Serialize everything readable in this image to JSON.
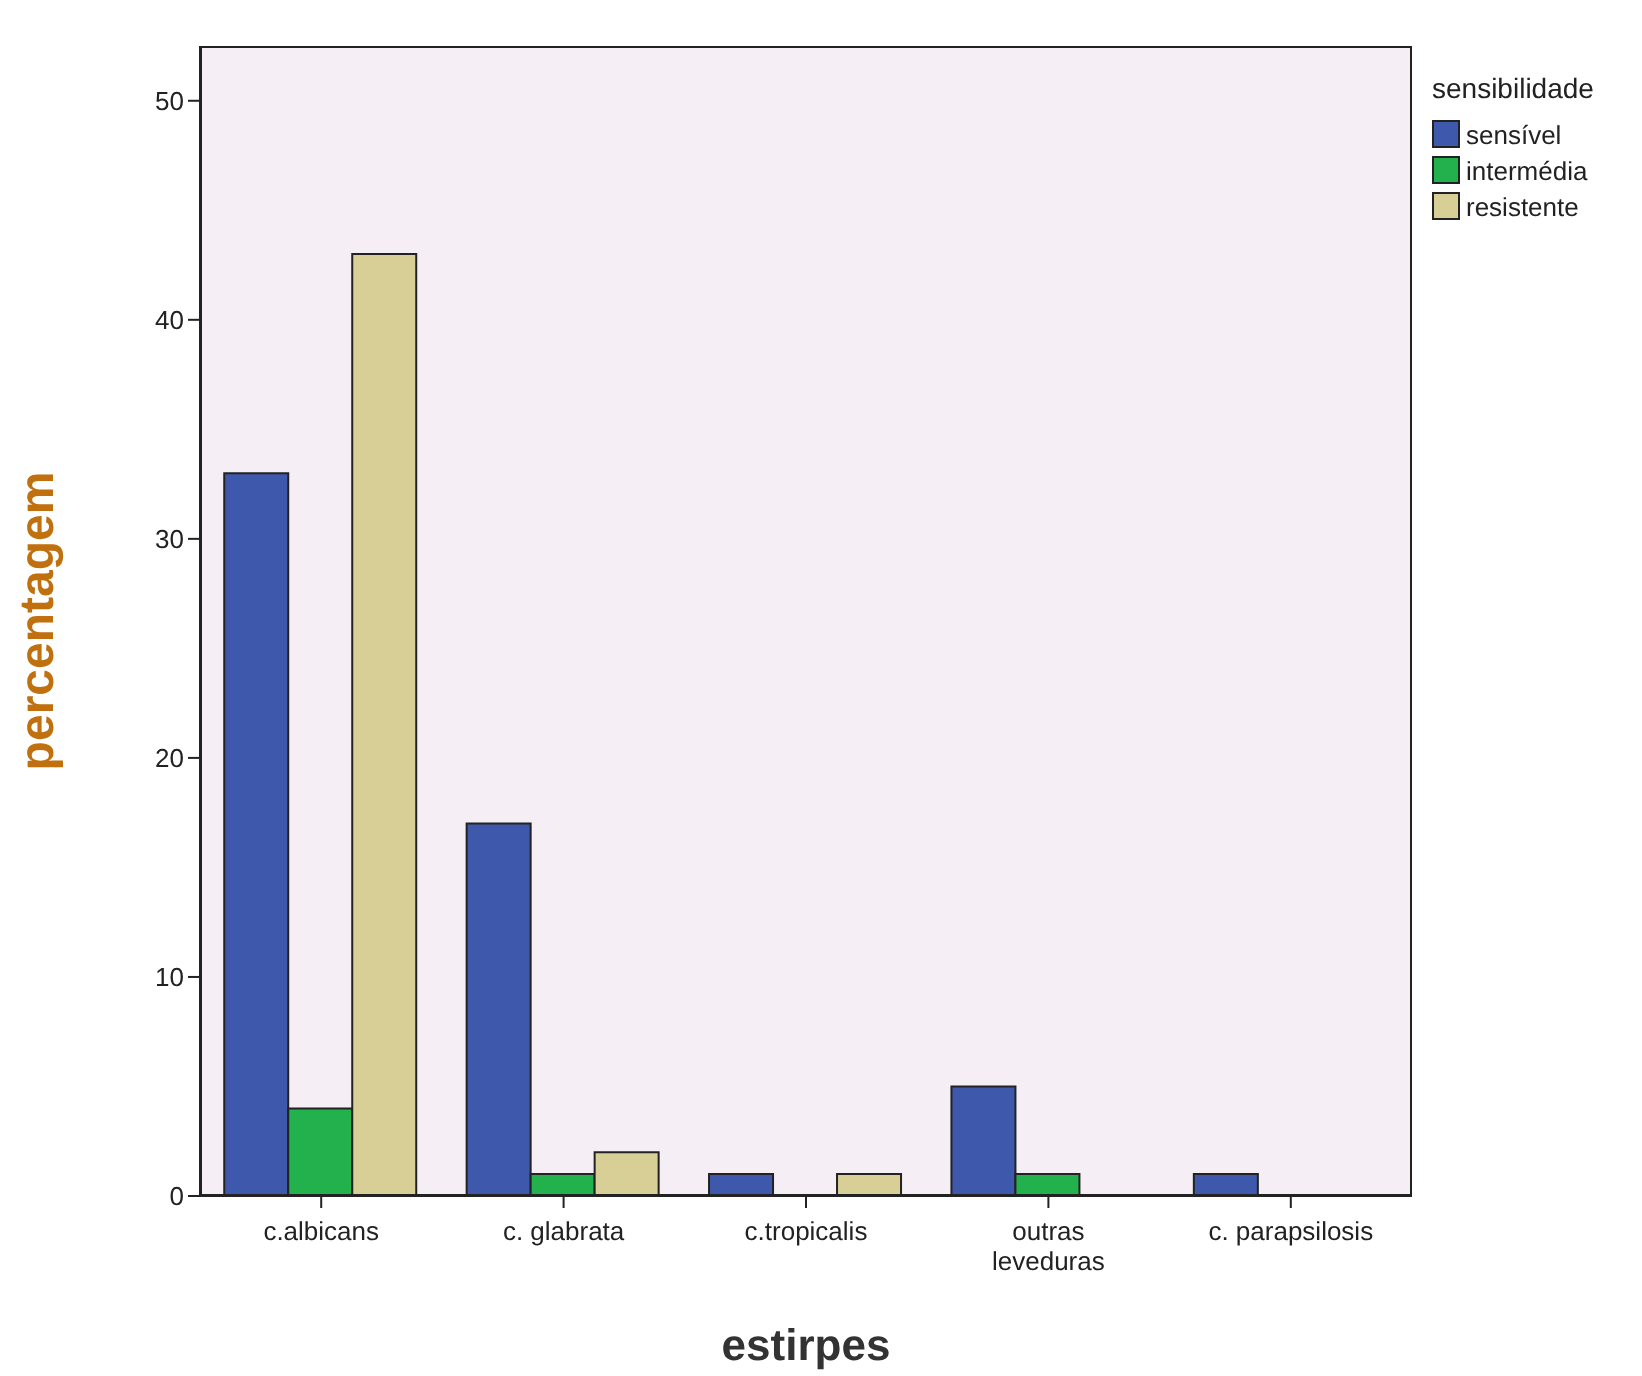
{
  "chart_data": {
    "type": "bar",
    "xlabel": "estirpes",
    "ylabel": "percentagem",
    "legend_title": "sensibilidade",
    "legend": "top right",
    "categories": [
      "c.albicans",
      "c. glabrata",
      "c.tropicalis",
      "outras leveduras",
      "c. parapsilosis"
    ],
    "ylim": [
      0,
      52.5
    ],
    "yticks": [
      0,
      10,
      20,
      30,
      40,
      50
    ],
    "series": [
      {
        "name": "sensível",
        "color": "#3e58ac",
        "values": [
          33,
          17,
          1,
          5,
          1
        ]
      },
      {
        "name": "intermédia",
        "color": "#22b14c",
        "values": [
          4,
          1,
          0,
          1,
          0
        ]
      },
      {
        "name": "resistente",
        "color": "#d8cf97",
        "values": [
          43,
          2,
          1,
          0,
          0
        ]
      }
    ]
  }
}
